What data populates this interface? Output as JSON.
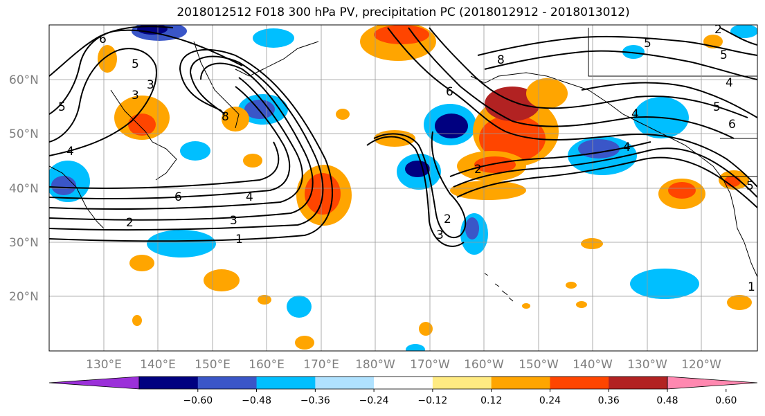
{
  "title": "2018012512 F018 300 hPa PV, precipitation PC (2018012912 - 2018013012)",
  "lat_labels": [
    "60°N",
    "50°N",
    "40°N",
    "30°N",
    "20°N"
  ],
  "lon_labels": [
    "130°E",
    "140°E",
    "150°E",
    "160°E",
    "170°E",
    "180°W",
    "170°W",
    "160°W",
    "150°W",
    "140°W",
    "130°W",
    "120°W"
  ],
  "colorbar": {
    "ticks": [
      "−0.60",
      "−0.48",
      "−0.36",
      "−0.24",
      "−0.12",
      "0.12",
      "0.24",
      "0.36",
      "0.48",
      "0.60"
    ],
    "colors": [
      "#9b30d9",
      "#000080",
      "#3a56c8",
      "#00bfff",
      "#b0e2ff",
      "#ffffff",
      "#ffeb82",
      "#ffa500",
      "#ff4500",
      "#b22222",
      "#ff88b0"
    ]
  },
  "pv_contour_labels": [
    "6",
    "5",
    "3",
    "3",
    "5",
    "8",
    "4",
    "6",
    "4",
    "3",
    "1",
    "2",
    "8",
    "6",
    "2",
    "3",
    "2",
    "5",
    "5",
    "4",
    "5",
    "4",
    "6",
    "4",
    "2",
    "5",
    "1"
  ]
}
